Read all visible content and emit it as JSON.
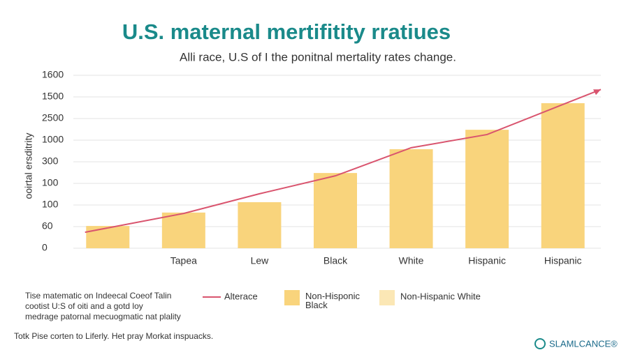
{
  "chart_data": {
    "type": "bar",
    "title": "U.S. maternal mertifitity rratiues",
    "subtitle": "Alli race, U.S of I the ponitnal mertality rates change.",
    "y_label": "ooirtal ersditrity",
    "categories": [
      null,
      "Tapea",
      "Lew",
      "Black",
      "White",
      "Hispanic",
      "Hispanic"
    ],
    "series": [
      {
        "name": "Non-Hisponic Black",
        "type": "bar",
        "color": "#f9d47c",
        "values": [
          1.03,
          1.65,
          2.13,
          3.48,
          4.58,
          5.48,
          6.71
        ]
      },
      {
        "name": "Alterace",
        "type": "line",
        "color": "#d9546e",
        "values": [
          0.94,
          1.61,
          2.52,
          3.35,
          4.65,
          5.26,
          6.65
        ]
      }
    ],
    "extra_legend": {
      "name": "Non-Hispanic White",
      "color": "#fbe7b5"
    },
    "ylim": [
      0,
      8
    ],
    "yticks": [
      {
        "value": 0,
        "label": "0"
      },
      {
        "value": 1,
        "label": "60"
      },
      {
        "value": 2,
        "label": "100"
      },
      {
        "value": 3,
        "label": "100"
      },
      {
        "value": 4,
        "label": "300"
      },
      {
        "value": 5,
        "label": "1000"
      },
      {
        "value": 6,
        "label": "2500"
      },
      {
        "value": 7,
        "label": "1500"
      },
      {
        "value": 8,
        "label": "1600"
      }
    ],
    "grid": true,
    "notes": [
      "Tise matematic on Indeecal Coeof Talin",
      "cootist U:S of oiti and a gotd loy",
      "medrage patornal mecuogmatic nat plality"
    ],
    "footer": "Totk Pise corten to Liferly. Het pray Morkat inspuacks.",
    "brand": "SLAMLCANCE®"
  }
}
